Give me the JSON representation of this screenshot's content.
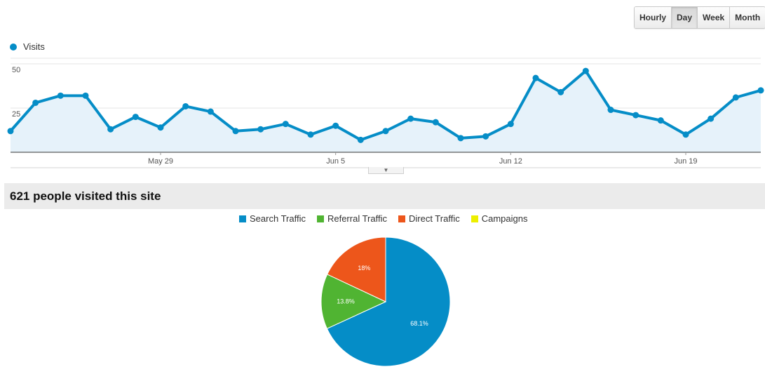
{
  "range_buttons": [
    {
      "label": "Hourly",
      "active": false
    },
    {
      "label": "Day",
      "active": true
    },
    {
      "label": "Week",
      "active": false
    },
    {
      "label": "Month",
      "active": false
    }
  ],
  "line_legend": {
    "label": "Visits",
    "color": "#058dc7"
  },
  "summary": {
    "text": "621 people visited this site"
  },
  "pie_legend": [
    {
      "label": "Search Traffic",
      "color": "#058dc7"
    },
    {
      "label": "Referral Traffic",
      "color": "#50b432"
    },
    {
      "label": "Direct Traffic",
      "color": "#ed561b"
    },
    {
      "label": "Campaigns",
      "color": "#edef00"
    }
  ],
  "chart_data": [
    {
      "type": "area",
      "series": [
        {
          "name": "Visits",
          "color": "#058dc7",
          "values": [
            12,
            28,
            32,
            32,
            13,
            20,
            14,
            26,
            23,
            12,
            13,
            16,
            10,
            15,
            7,
            12,
            19,
            17,
            8,
            9,
            16,
            42,
            34,
            46,
            24,
            21,
            18,
            10,
            19,
            31,
            35
          ]
        }
      ],
      "x_tick_labels": [
        "May 29",
        "Jun 5",
        "Jun 12",
        "Jun 19"
      ],
      "x_tick_index": [
        6,
        13,
        20,
        27
      ],
      "y_tick_labels": [
        "50",
        "25"
      ],
      "ylim": [
        0,
        50
      ],
      "grid": true
    },
    {
      "type": "pie",
      "slices": [
        {
          "label": "Search Traffic",
          "value": 68.1,
          "display": "68.1%",
          "color": "#058dc7"
        },
        {
          "label": "Referral Traffic",
          "value": 13.8,
          "display": "13.8%",
          "color": "#50b432"
        },
        {
          "label": "Direct Traffic",
          "value": 18,
          "display": "18%",
          "color": "#ed561b"
        },
        {
          "label": "Campaigns",
          "value": 0,
          "display": "",
          "color": "#edef00"
        }
      ]
    }
  ]
}
